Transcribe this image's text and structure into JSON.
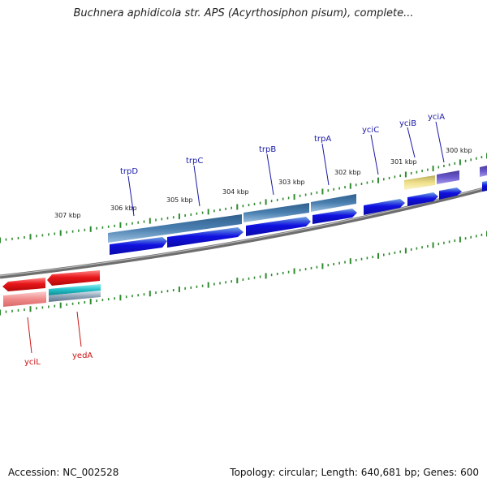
{
  "title": "Buchnera aphidicola str. APS (Acyrthosiphon pisum), complete...",
  "footer": {
    "accession": "Accession: NC_002528",
    "summary": "Topology: circular; Length: 640,681 bp; Genes: 600"
  },
  "colors": {
    "background": "#ffffff",
    "backbone": "#888888",
    "tick_marks": "#2e8b2e",
    "cds_forward": "#1010e0",
    "cds_reverse": "#e8161a",
    "cog_blue": "#4a7fb0",
    "cog_yellow": "#f0e08a",
    "cog_purple": "#6a5acd",
    "cog_pink": "#f08a8a",
    "cog_cyan": "#22c0c8",
    "label_forward": "#1a1aa8",
    "label_reverse": "#cc1111"
  },
  "scale_labels": [
    {
      "text": "307 kbp"
    },
    {
      "text": "306 kbp"
    },
    {
      "text": "305 kbp"
    },
    {
      "text": "304 kbp"
    },
    {
      "text": "303 kbp"
    },
    {
      "text": "302 kbp"
    },
    {
      "text": "301 kbp"
    },
    {
      "text": "300 kbp"
    }
  ],
  "genes_forward": [
    {
      "name": "trpD"
    },
    {
      "name": "trpC"
    },
    {
      "name": "trpB"
    },
    {
      "name": "trpA"
    },
    {
      "name": "yciC"
    },
    {
      "name": "yciB"
    },
    {
      "name": "yciA"
    }
  ],
  "genes_reverse": [
    {
      "name": "yciL"
    },
    {
      "name": "yedA"
    }
  ]
}
